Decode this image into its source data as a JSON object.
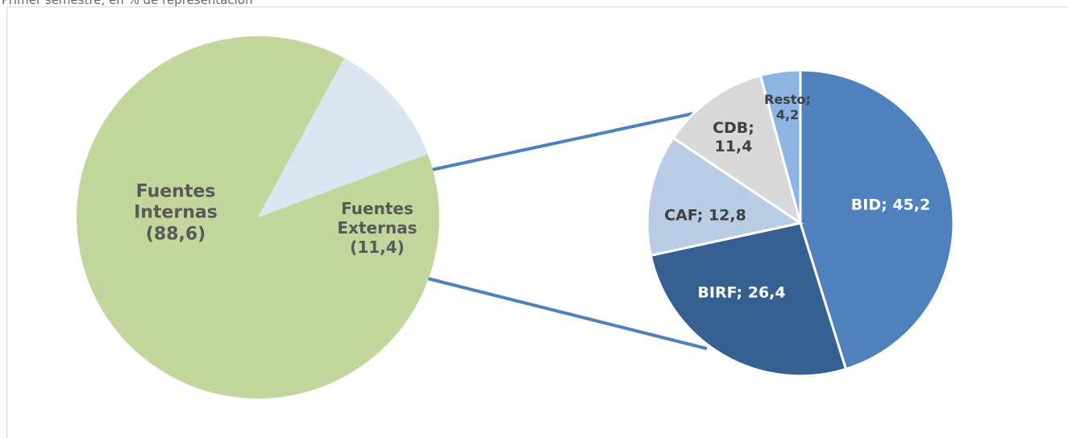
{
  "chart_data": [
    {
      "type": "pie",
      "subtitle": "Primer semestre, en % de representación",
      "values": [
        88.6,
        11.4
      ],
      "value_labels": [
        "Fuentes Internas (88,6)",
        "Fuentes Externas (11,4)"
      ],
      "colors": [
        "#c3d69b",
        "#dce6f2"
      ]
    },
    {
      "type": "pie",
      "values": [
        45.2,
        26.4,
        12.8,
        11.4,
        4.2
      ],
      "value_labels": [
        "BID; 45,2",
        "BIRF; 26,4",
        "CAF; 12,8",
        "CDB; 11,4",
        "Resto; 4,2"
      ],
      "colors": [
        "#4f81bd",
        "#376092",
        "#b9cde5",
        "#d9d9d9",
        "#8db4e2"
      ]
    }
  ]
}
